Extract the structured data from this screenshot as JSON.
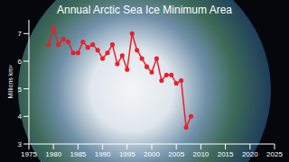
{
  "chart_data": {
    "type": "line",
    "title": "Annual Arctic Sea Ice Minimum Area",
    "y_label": "Millions km²",
    "x": [
      1979,
      1980,
      1981,
      1982,
      1983,
      1984,
      1985,
      1986,
      1987,
      1988,
      1989,
      1990,
      1991,
      1992,
      1993,
      1994,
      1995,
      1996,
      1997,
      1998,
      1999,
      2000,
      2001,
      2002,
      2003,
      2004,
      2005,
      2006,
      2007,
      2008
    ],
    "series": [
      {
        "name": "Annual Arctic Sea Ice Minimum Area",
        "color": "#e8202a",
        "marker": "circle",
        "values": [
          6.6,
          7.2,
          6.6,
          6.8,
          6.7,
          6.3,
          6.3,
          6.7,
          6.5,
          6.6,
          6.4,
          6.1,
          6.3,
          6.6,
          5.9,
          6.2,
          5.7,
          7.0,
          6.4,
          6.1,
          5.8,
          5.6,
          6.1,
          5.3,
          5.5,
          5.5,
          5.2,
          5.3,
          3.6,
          4.0
        ]
      }
    ],
    "xlim": [
      1975,
      2025
    ],
    "xticks": [
      1975,
      1980,
      1985,
      1990,
      1995,
      2000,
      2005,
      2010,
      2015,
      2020,
      2025
    ],
    "ylim": [
      3,
      7.5
    ],
    "yticks": [
      3,
      4,
      5,
      6,
      7
    ],
    "grid": false
  }
}
